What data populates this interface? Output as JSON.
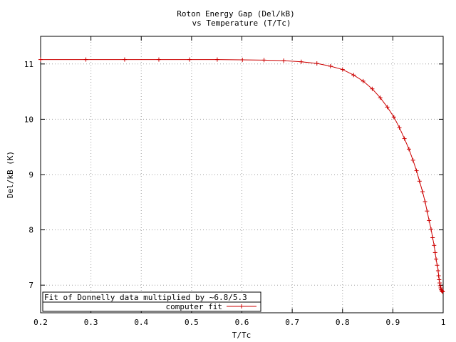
{
  "chart_data": {
    "type": "line",
    "title_line1": "Roton Energy Gap (Del/kB)",
    "title_line2": "vs Temperature (T/Tc)",
    "xlabel": "T/Tc",
    "ylabel": "Del/kB (K)",
    "xlim": [
      0.2,
      1.0
    ],
    "ylim": [
      6.5,
      11.5
    ],
    "xticks": [
      0.2,
      0.3,
      0.4,
      0.5,
      0.6,
      0.7,
      0.8,
      0.9,
      1.0
    ],
    "xtick_labels": [
      "0.2",
      "0.3",
      "0.4",
      "0.5",
      "0.6",
      "0.7",
      "0.8",
      "0.9",
      "1"
    ],
    "yticks": [
      7,
      8,
      9,
      10,
      11
    ],
    "ytick_labels": [
      "7",
      "8",
      "9",
      "10",
      "11"
    ],
    "grid": true,
    "legend_title": "Fit of Donnelly data multiplied by ~6.8/5.3",
    "legend_placement": "bottom-left",
    "series": [
      {
        "name": "computer fit",
        "color": "#cc0000",
        "marker": "plus",
        "x": [
          0.2,
          0.29,
          0.367,
          0.435,
          0.496,
          0.551,
          0.601,
          0.644,
          0.683,
          0.718,
          0.749,
          0.776,
          0.8,
          0.822,
          0.841,
          0.859,
          0.875,
          0.889,
          0.902,
          0.913,
          0.923,
          0.932,
          0.94,
          0.947,
          0.953,
          0.959,
          0.964,
          0.968,
          0.972,
          0.976,
          0.979,
          0.982,
          0.984,
          0.986,
          0.988,
          0.99,
          0.991,
          0.992,
          0.993,
          0.994,
          0.995,
          0.996,
          0.997,
          0.998,
          0.999
        ],
        "y": [
          11.08,
          11.08,
          11.08,
          11.08,
          11.08,
          11.08,
          11.075,
          11.07,
          11.06,
          11.04,
          11.01,
          10.96,
          10.9,
          10.8,
          10.69,
          10.55,
          10.39,
          10.22,
          10.04,
          9.85,
          9.65,
          9.46,
          9.26,
          9.07,
          8.88,
          8.69,
          8.51,
          8.34,
          8.17,
          8.01,
          7.86,
          7.72,
          7.59,
          7.47,
          7.36,
          7.26,
          7.17,
          7.1,
          7.04,
          6.99,
          6.95,
          6.92,
          6.9,
          6.89,
          6.88
        ]
      }
    ]
  }
}
